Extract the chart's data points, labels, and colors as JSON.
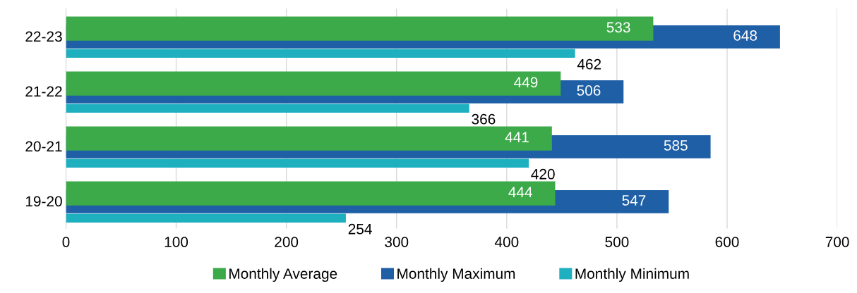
{
  "chart_data": {
    "type": "bar",
    "orientation": "horizontal",
    "categories": [
      "22-23",
      "21-22",
      "20-21",
      "19-20"
    ],
    "series": [
      {
        "name": "Monthly Average",
        "color": "#3daa4a",
        "values": [
          533,
          449,
          441,
          444
        ]
      },
      {
        "name": "Monthly Maximum",
        "color": "#1f5fa6",
        "values": [
          648,
          506,
          585,
          547
        ]
      },
      {
        "name": "Monthly Minimum",
        "color": "#1fb0c0",
        "values": [
          462,
          366,
          420,
          254
        ]
      }
    ],
    "xlim": [
      0,
      700
    ],
    "xticks": [
      0,
      100,
      200,
      300,
      400,
      500,
      600,
      700
    ],
    "grid": "x",
    "legend": "bottom",
    "data_labels": true
  }
}
